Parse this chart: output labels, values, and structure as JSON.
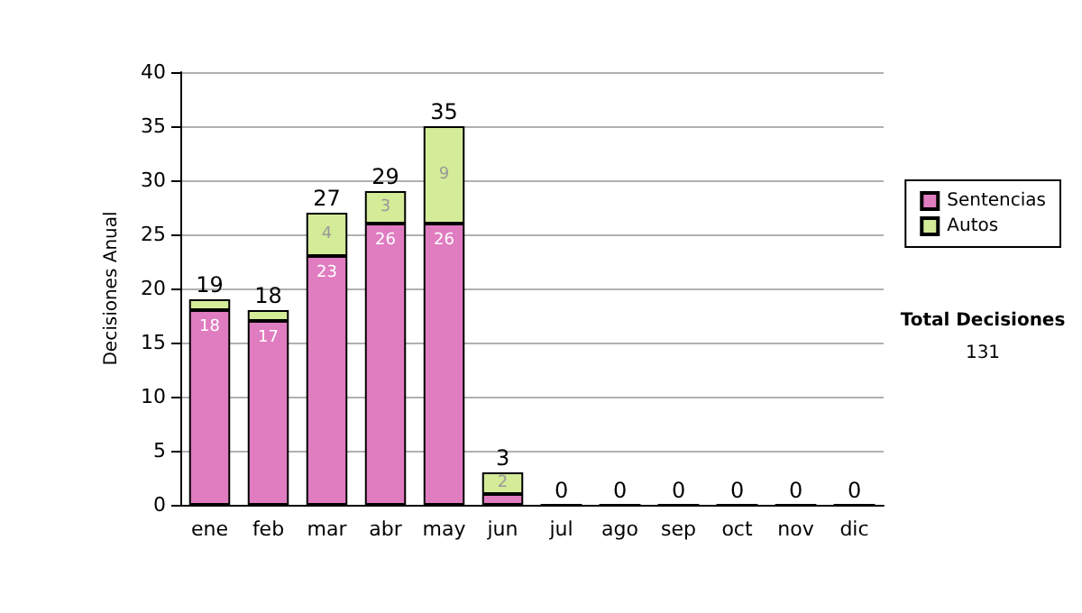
{
  "chart_data": {
    "type": "bar",
    "stacked": true,
    "ylabel": "Decisiones Anual",
    "categories": [
      "ene",
      "feb",
      "mar",
      "abr",
      "may",
      "jun",
      "jul",
      "ago",
      "sep",
      "oct",
      "nov",
      "dic"
    ],
    "series": [
      {
        "name": "Sentencias",
        "color": "#e07cc0",
        "values": [
          18,
          17,
          23,
          26,
          26,
          1,
          0,
          0,
          0,
          0,
          0,
          0
        ],
        "value_labels": [
          "18",
          "17",
          "23",
          "26",
          "26",
          null,
          null,
          null,
          null,
          null,
          null,
          null
        ]
      },
      {
        "name": "Autos",
        "color": "#d4eb98",
        "values": [
          1,
          1,
          4,
          3,
          9,
          2,
          0,
          0,
          0,
          0,
          0,
          0
        ],
        "value_labels": [
          null,
          null,
          "4",
          "3",
          "9",
          "2",
          null,
          null,
          null,
          null,
          null,
          null
        ]
      }
    ],
    "totals": [
      "19",
      "18",
      "27",
      "29",
      "35",
      "3",
      "0",
      "0",
      "0",
      "0",
      "0",
      "0"
    ],
    "ylim": [
      0,
      40
    ],
    "yticks": [
      0,
      5,
      10,
      15,
      20,
      25,
      30,
      35,
      40
    ],
    "grid": "y",
    "legend": "right",
    "annotations": [
      "Total Decisiones",
      "131"
    ]
  }
}
